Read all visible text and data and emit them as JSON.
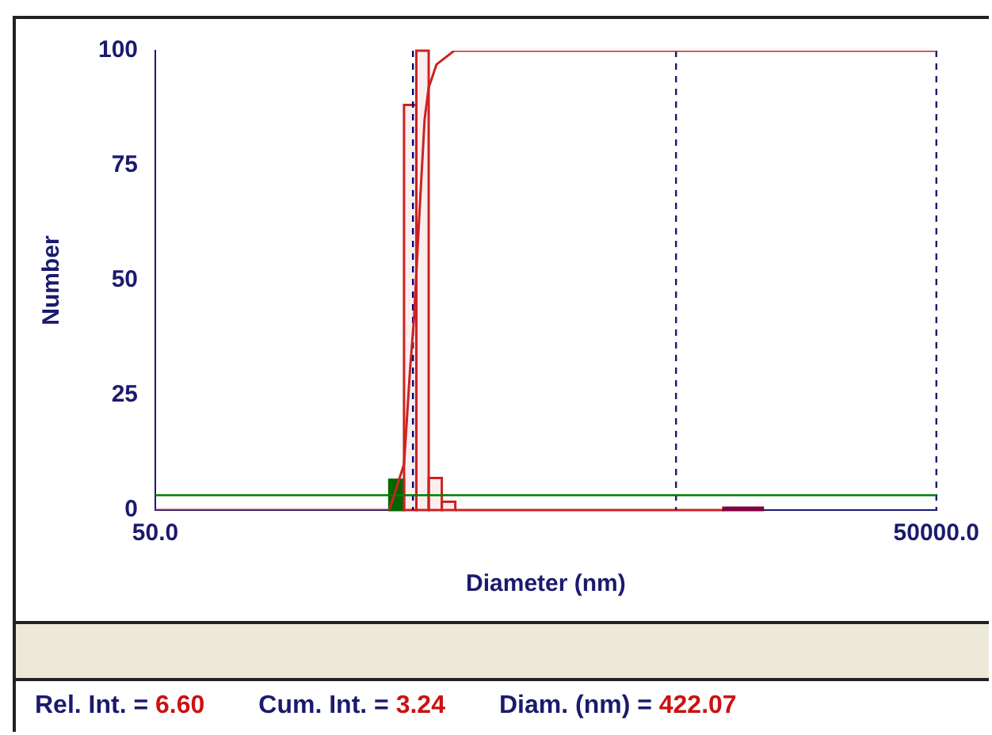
{
  "chart_data": {
    "type": "histogram",
    "xlabel": "Diameter (nm)",
    "ylabel": "Number",
    "bins": [
      396,
      451,
      503,
      561,
      630,
      710,
      7601,
      10780
    ],
    "values": [
      6.6,
      88.2,
      100,
      7,
      1.8,
      0,
      0.5
    ],
    "colors": [
      "#006600",
      "#cc2222",
      "#cc2222",
      "#cc2222",
      "#cc2222",
      "#cc2222",
      "#800040"
    ],
    "series": [
      {
        "type": "line",
        "color": "#cc2222",
        "x": [
          50,
          396,
          451,
          475,
          493,
          514,
          541,
          561,
          601,
          703,
          50000
        ],
        "values": [
          0,
          0,
          10,
          30,
          42,
          62,
          85,
          92,
          97,
          100,
          100
        ]
      }
    ],
    "log": "x",
    "xlim": [
      50,
      50000
    ],
    "xticks": [
      {
        "value": 50,
        "label": "50.0"
      },
      {
        "value": 50000,
        "label": "50000.0"
      }
    ],
    "ylim": [
      0,
      100
    ],
    "yticks": [
      0,
      25,
      50,
      75,
      100
    ],
    "grid": false,
    "legend": false,
    "ref_lines": [
      {
        "axis": "x",
        "value": 488,
        "color": "#000080",
        "line_style": "dashed"
      },
      {
        "axis": "x",
        "value": 5000,
        "color": "#1a1a6e",
        "line_style": "dashed"
      },
      {
        "axis": "x",
        "value": 50000,
        "color": "#1a1a6e",
        "line_style": "dashed"
      },
      {
        "axis": "y",
        "value": 3.24,
        "color": "#008000",
        "line_style": "solid"
      }
    ],
    "annotations": [
      "Rel. Int. = 6.60",
      "Cum. Int. = 3.24",
      "Diam. (nm) = 422.07"
    ]
  }
}
